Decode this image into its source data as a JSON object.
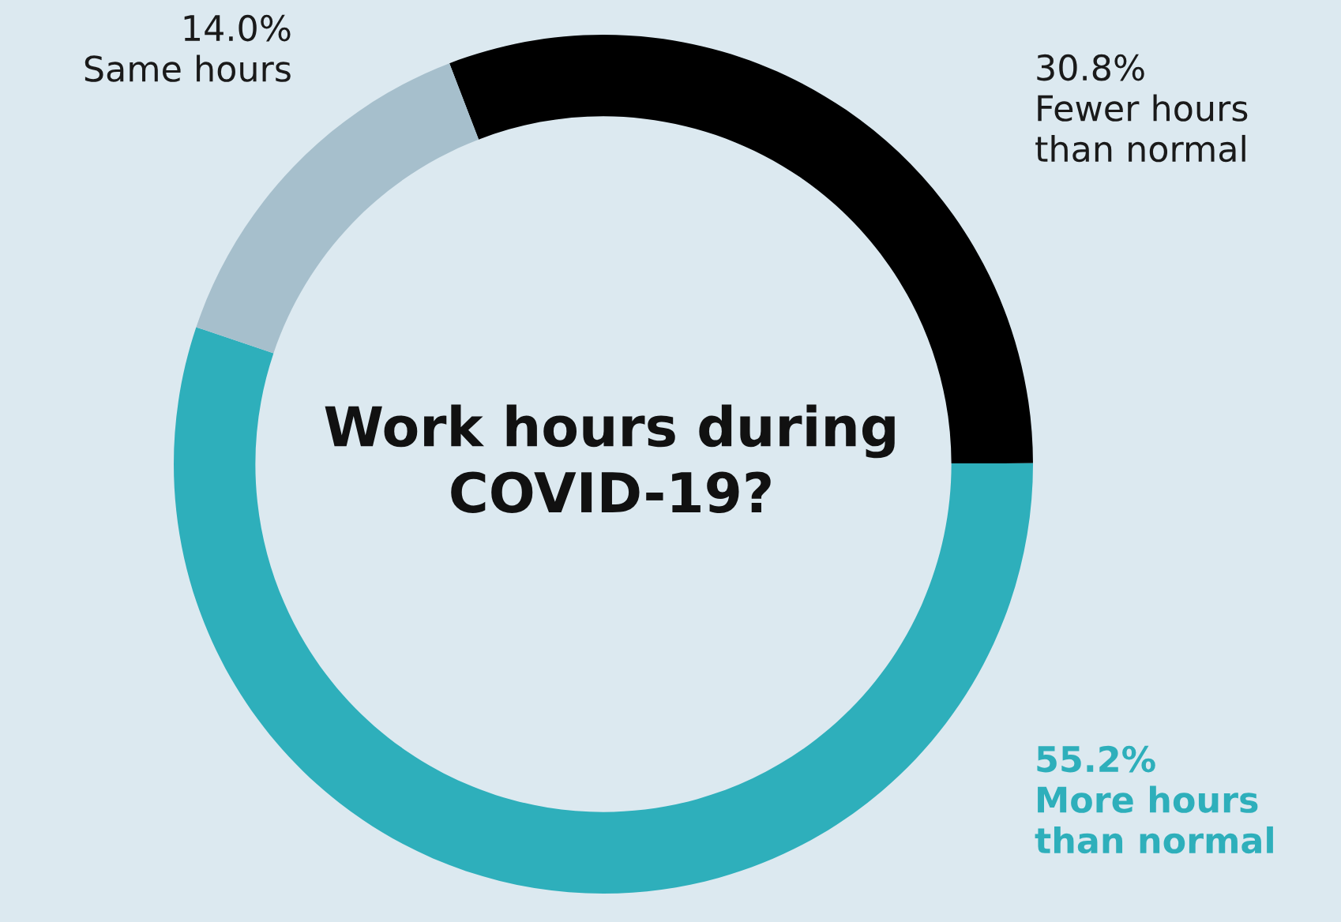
{
  "chart_data": {
    "type": "donut",
    "title": "Work hours during\nCOVID-19?",
    "categories": [
      "Fewer hours\nthan normal",
      "More hours\nthan normal",
      "Same hours"
    ],
    "values": [
      30.8,
      55.2,
      14.0
    ],
    "colors": [
      "#000000",
      "#2eafbb",
      "#a6bfcc"
    ],
    "value_labels": [
      "30.8%",
      "55.2%",
      "14.0%"
    ],
    "legend": false
  }
}
